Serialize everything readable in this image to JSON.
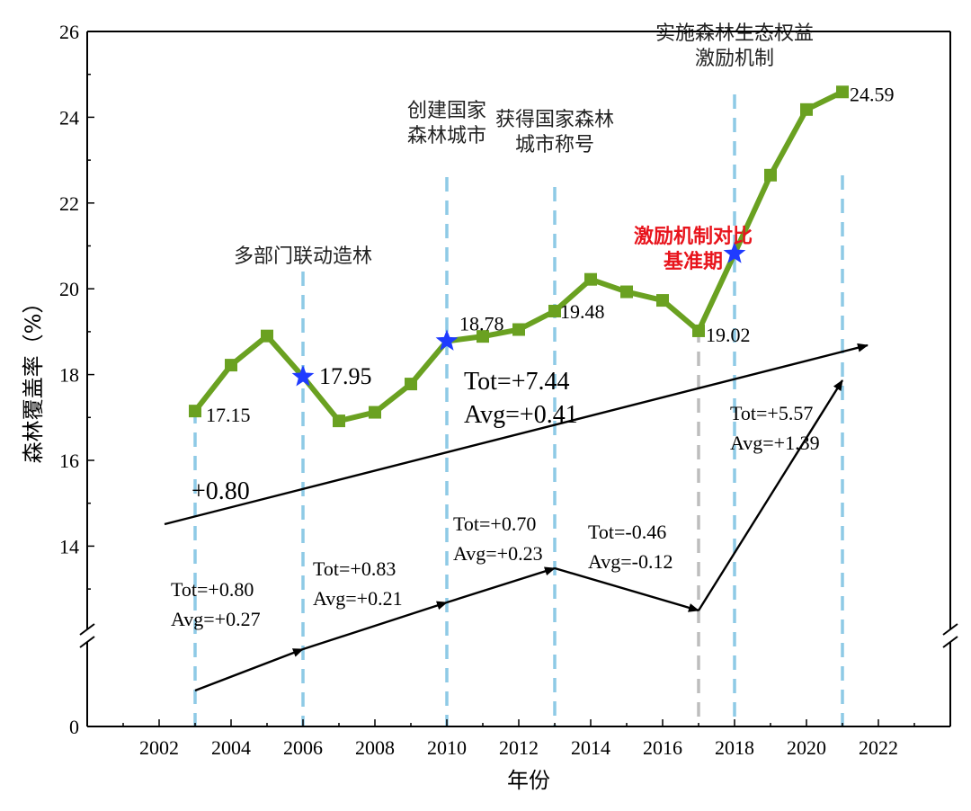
{
  "chart_data": {
    "type": "line",
    "xlabel": "年份",
    "ylabel": "森林覆盖率（%）",
    "xlim": [
      2000,
      2024
    ],
    "x_ticks": [
      "2002",
      "2004",
      "2006",
      "2008",
      "2010",
      "2012",
      "2014",
      "2016",
      "2018",
      "2020",
      "2022"
    ],
    "y_ticks": [
      "0",
      "14",
      "16",
      "18",
      "20",
      "22",
      "24",
      "26"
    ],
    "y_axis_break": true,
    "grid": false,
    "colors": {
      "line": "#6aa121",
      "marker": "#6aa121",
      "star": "#1f3bff",
      "event_line": "#8ecae6",
      "event_line_gray": "#bdbdbd",
      "highlight_text": "#e8141c"
    },
    "series": [
      {
        "x": [
          2003,
          2004,
          2005,
          2006,
          2007,
          2008,
          2009,
          2010,
          2011,
          2012,
          2013,
          2014,
          2015,
          2016,
          2017,
          2018,
          2019,
          2020,
          2021
        ],
        "values": [
          17.15,
          18.22,
          18.9,
          17.95,
          16.92,
          17.12,
          17.78,
          18.78,
          18.89,
          19.05,
          19.48,
          20.22,
          19.93,
          19.73,
          19.02,
          20.82,
          22.65,
          24.18,
          24.59
        ]
      }
    ],
    "star_points": [
      {
        "x": 2006,
        "value": 17.95
      },
      {
        "x": 2010,
        "value": 18.78
      },
      {
        "x": 2018,
        "value": 20.82
      }
    ],
    "data_labels": [
      {
        "x": 2003,
        "value": 17.15,
        "text": "17.15"
      },
      {
        "x": 2006,
        "value": 17.95,
        "text": "17.95"
      },
      {
        "x": 2010,
        "value": 18.78,
        "text": "18.78"
      },
      {
        "x": 2013,
        "value": 19.48,
        "text": "19.48"
      },
      {
        "x": 2017,
        "value": 19.02,
        "text": "19.02"
      },
      {
        "x": 2021,
        "value": 24.59,
        "text": "24.59"
      }
    ],
    "event_lines": [
      {
        "x": 2003,
        "style": "blue"
      },
      {
        "x": 2006,
        "style": "blue",
        "label": [
          "多部门联动造林"
        ]
      },
      {
        "x": 2010,
        "style": "blue",
        "label": [
          "创建国家",
          "森林城市"
        ]
      },
      {
        "x": 2013,
        "style": "blue",
        "label": [
          "获得国家森林",
          "城市称号"
        ]
      },
      {
        "x": 2017,
        "style": "gray"
      },
      {
        "x": 2018,
        "style": "blue",
        "label": [
          "实施森林生态权益",
          "激励机制"
        ]
      },
      {
        "x": 2021,
        "style": "blue"
      }
    ],
    "red_annotation": [
      "激励机制对比",
      "基准期"
    ],
    "overall_trend": {
      "start_label": "+0.80",
      "tot": "Tot=+7.44",
      "avg": "Avg=+0.41"
    },
    "segment_trends": [
      {
        "from": 2003,
        "to": 2006,
        "tot": "Tot=+0.80",
        "avg": "Avg=+0.27"
      },
      {
        "from": 2006,
        "to": 2010,
        "tot": "Tot=+0.83",
        "avg": "Avg=+0.21"
      },
      {
        "from": 2010,
        "to": 2013,
        "tot": "Tot=+0.70",
        "avg": "Avg=+0.23"
      },
      {
        "from": 2013,
        "to": 2017,
        "tot": "Tot=-0.46",
        "avg": "Avg=-0.12"
      },
      {
        "from": 2017,
        "to": 2021,
        "tot": "Tot=+5.57",
        "avg": "Avg=+1.39"
      }
    ]
  }
}
